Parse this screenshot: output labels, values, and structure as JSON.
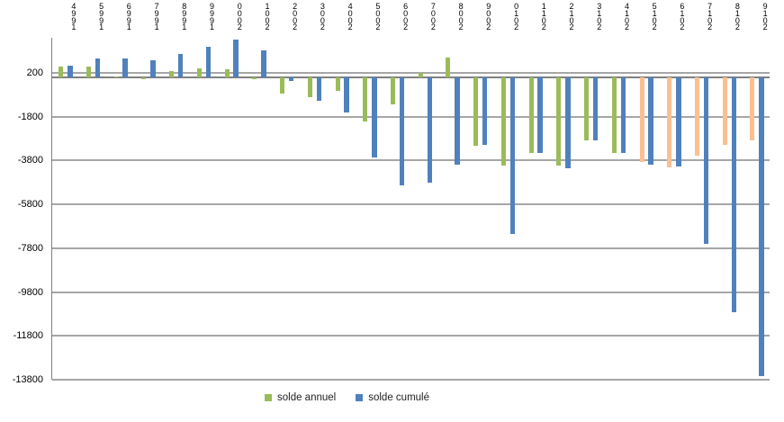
{
  "chart_data": {
    "type": "bar",
    "title": "",
    "xlabel": "",
    "ylabel": "",
    "categories": [
      "1994",
      "1995",
      "1996",
      "1997",
      "1998",
      "1999",
      "2000",
      "2001",
      "2002",
      "2003",
      "2004",
      "2005",
      "2006",
      "2007",
      "2008",
      "2009",
      "2010",
      "2011",
      "2012",
      "2013",
      "2014",
      "2015",
      "2016",
      "2017",
      "2018",
      "2019"
    ],
    "series": [
      {
        "name": "solde annuel",
        "color": "#9BBB59",
        "projected_color": "#FAC090",
        "projected_from_year": "2015",
        "values": [
          490,
          490,
          20,
          -90,
          290,
          390,
          350,
          -80,
          -750,
          -900,
          -610,
          -2020,
          -1240,
          190,
          900,
          -3110,
          -4030,
          -3450,
          -4030,
          -2870,
          -3450,
          -3870,
          -4100,
          -3590,
          -3090,
          -2870
        ]
      },
      {
        "name": "solde cumulé",
        "color": "#4F81BD",
        "values": [
          520,
          860,
          860,
          770,
          1050,
          1380,
          1740,
          1240,
          -160,
          -1060,
          -1620,
          -3660,
          -4920,
          -4800,
          -4000,
          -3090,
          -7150,
          -3450,
          -4140,
          -2870,
          -3450,
          -3980,
          -4070,
          -7590,
          -10730,
          -13650
        ]
      }
    ],
    "y_ticks": [
      200,
      -1800,
      -3800,
      -5800,
      -7800,
      -9800,
      -11800,
      -13800
    ],
    "ylim": [
      -13800,
      1800
    ],
    "grid": true,
    "gridline_color": "#A6A6A6",
    "zero_line_color": "#7F7F7F",
    "legend_position": "bottom",
    "x_label_style": "vertical-stacked-reversed"
  },
  "legend": {
    "items": [
      {
        "label": "solde annuel",
        "color": "#9BBB59"
      },
      {
        "label": "solde cumulé",
        "color": "#4F81BD"
      }
    ]
  }
}
